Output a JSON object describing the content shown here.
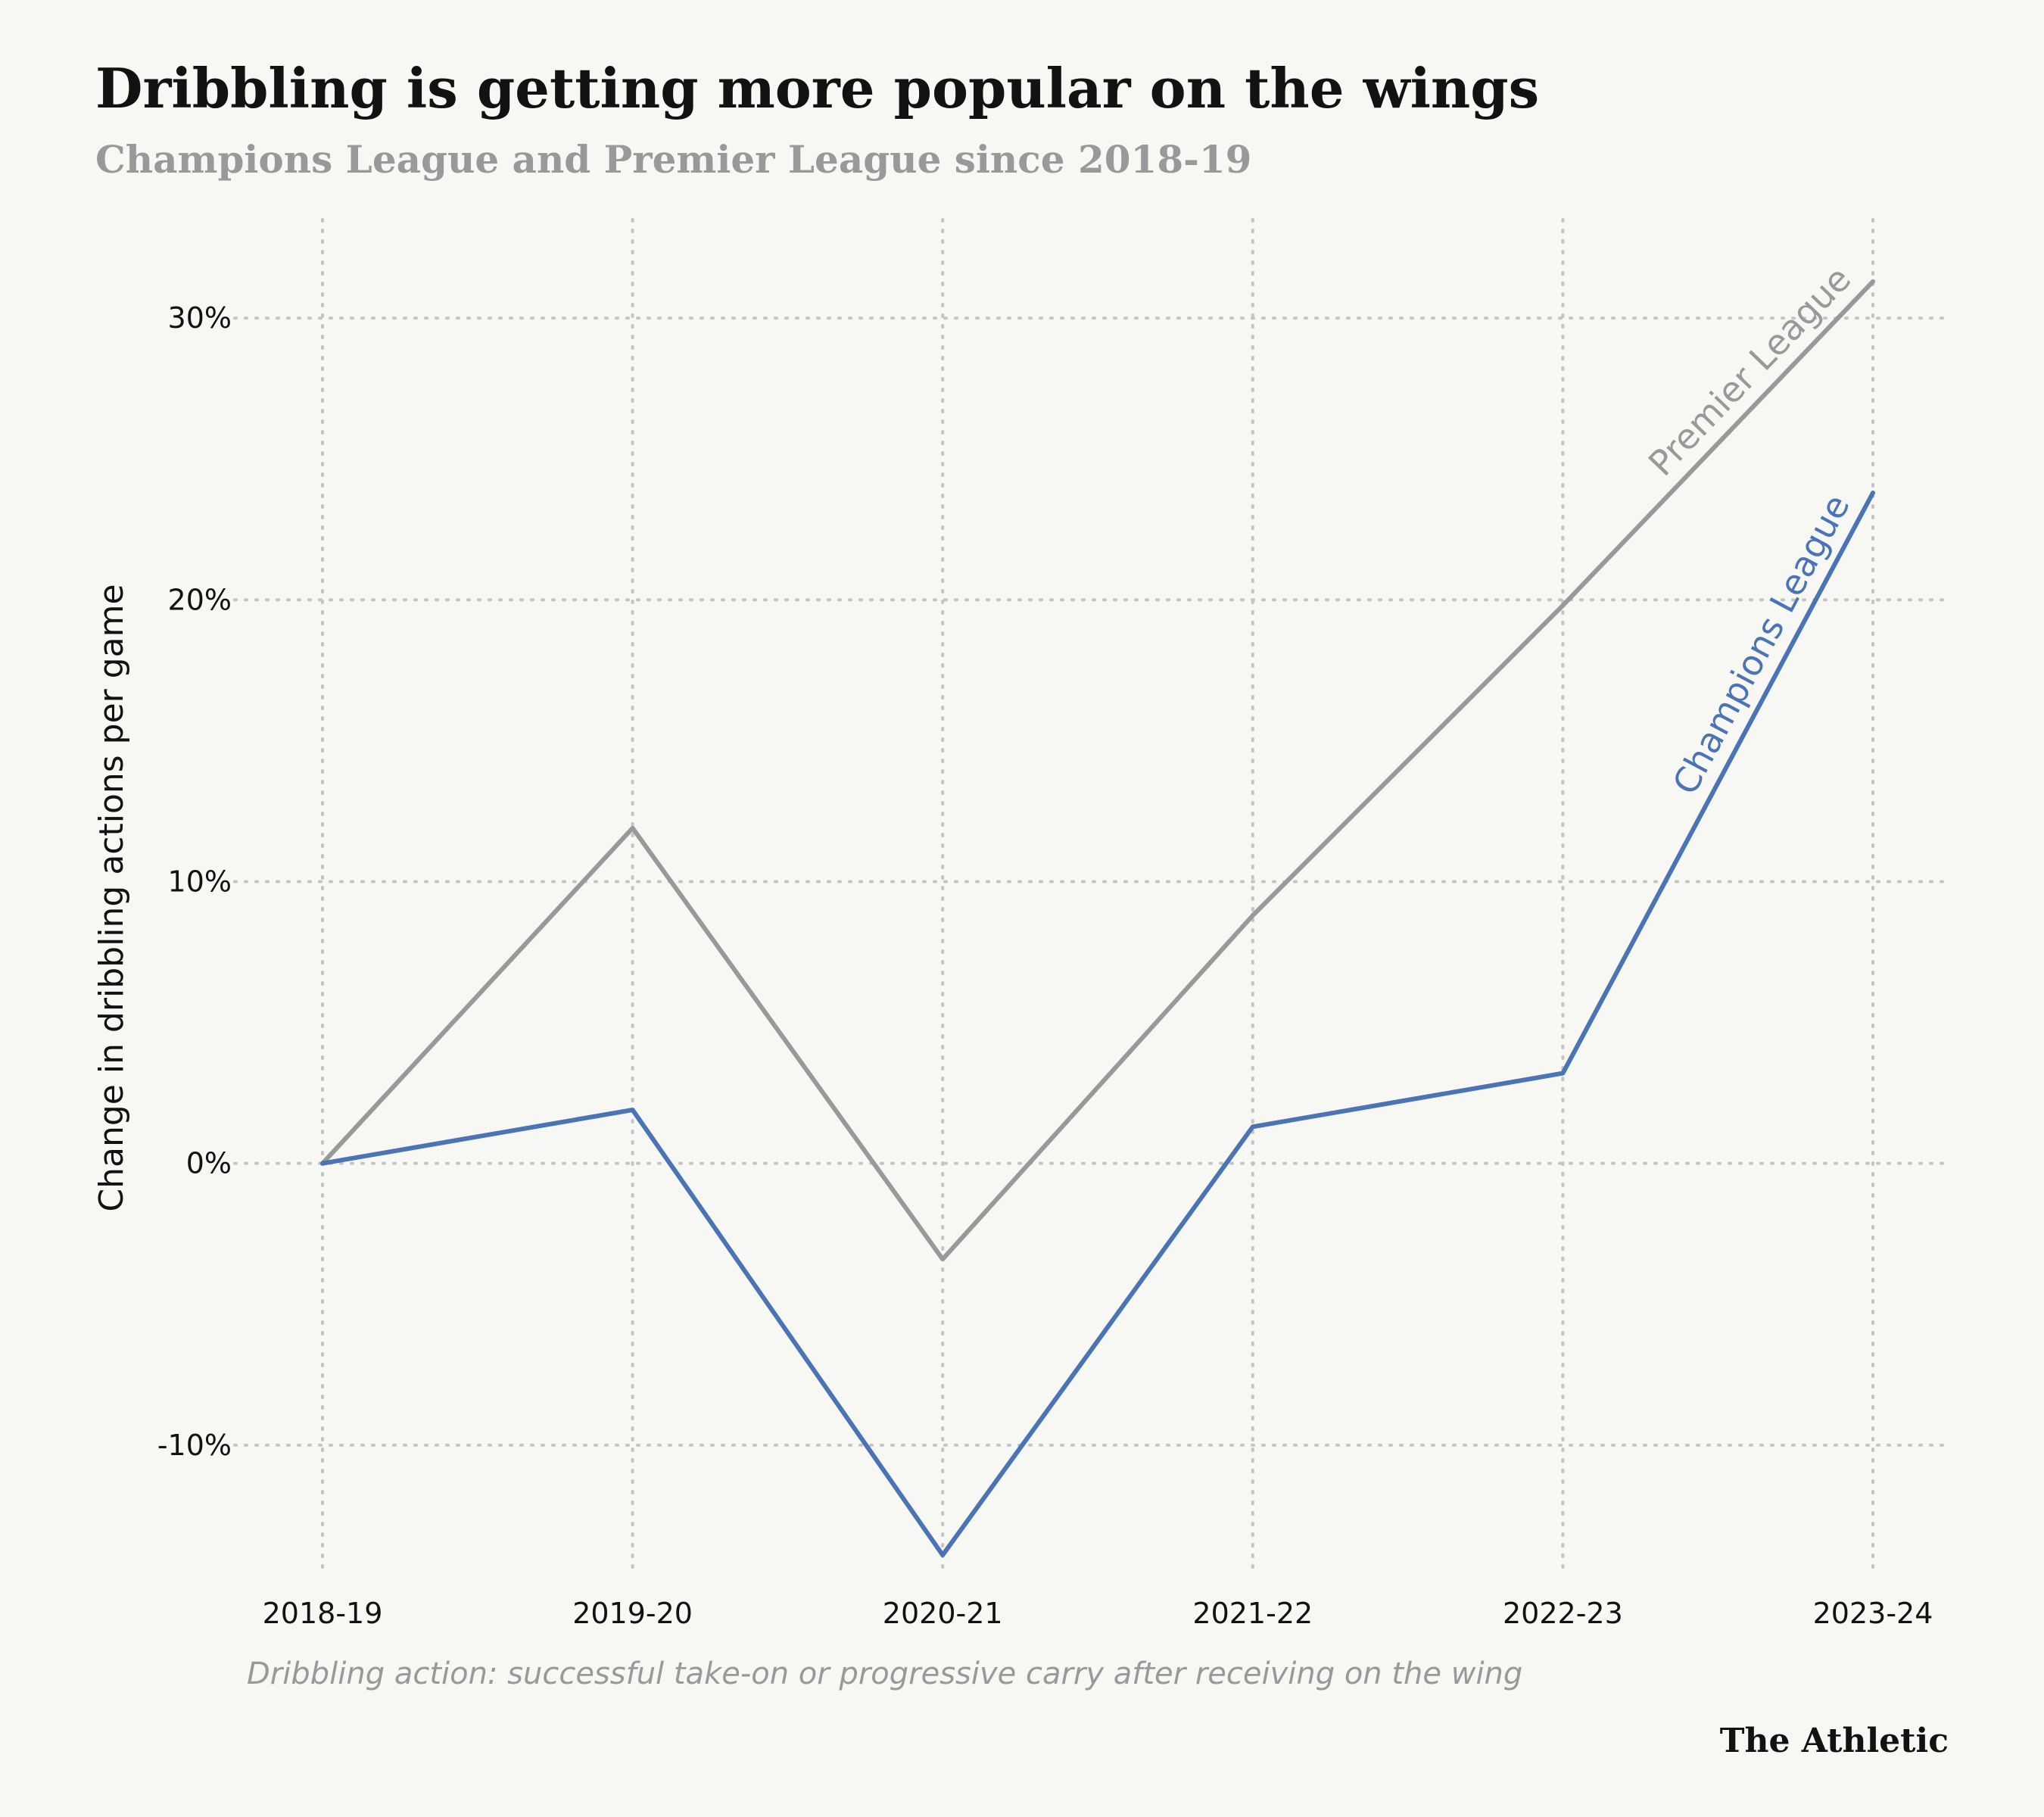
{
  "chart_data": {
    "type": "line",
    "title": "Dribbling is getting more popular on the wings",
    "subtitle": "Champions League and Premier League since 2018-19",
    "ylabel": "Change in dribbling actions per game",
    "xlabel": "",
    "categories": [
      "2018-19",
      "2019-20",
      "2020-21",
      "2021-22",
      "2022-23",
      "2023-24"
    ],
    "ylim": [
      -14.6,
      33.5
    ],
    "yticks": [
      -10,
      0,
      10,
      20,
      30
    ],
    "ytick_labels": [
      "-10%",
      "0%",
      "10%",
      "20%",
      "30%"
    ],
    "grid": true,
    "series": [
      {
        "name": "Premier League",
        "color": "#999999",
        "values": [
          0,
          11.9,
          -3.4,
          8.8,
          19.8,
          31.3
        ]
      },
      {
        "name": "Champions League",
        "color": "#4a74b5",
        "values": [
          0,
          1.9,
          -13.9,
          1.3,
          3.2,
          23.8
        ]
      }
    ],
    "note": "Dribbling action: successful take-on or progressive carry after receiving on the wing",
    "source": "The Athletic"
  }
}
